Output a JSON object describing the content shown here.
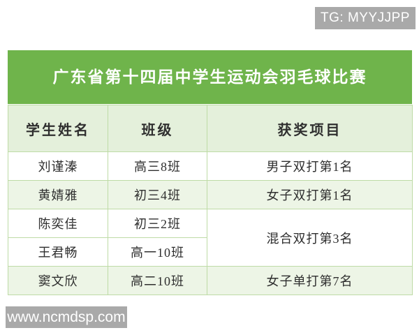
{
  "badges": {
    "tg": "TG: MYYJJPP",
    "watermark": "www.ncmdsp.com"
  },
  "title": "广东省第十四届中学生运动会羽毛球比赛",
  "table": {
    "columns": [
      "学生姓名",
      "班级",
      "获奖项目"
    ],
    "rows": [
      {
        "name": "刘谨溱",
        "class": "高三8班",
        "award": "男子双打第1名"
      },
      {
        "name": "黄婧雅",
        "class": "初三4班",
        "award": "女子双打第1名"
      },
      {
        "name": "陈奕佳",
        "class": "初三2班",
        "award": "混合双打第3名"
      },
      {
        "name": "王君畅",
        "class": "高一10班"
      },
      {
        "name": "窦文欣",
        "class": "高二10班",
        "award": "女子单打第7名"
      }
    ]
  },
  "colors": {
    "title_bg": "#6fb44b",
    "header_bg": "#e4f0db",
    "stripe_bg": "#edf5e6",
    "border": "#bedba6",
    "badge_bg": "#a9a9a9",
    "text": "#2f2f2f"
  }
}
